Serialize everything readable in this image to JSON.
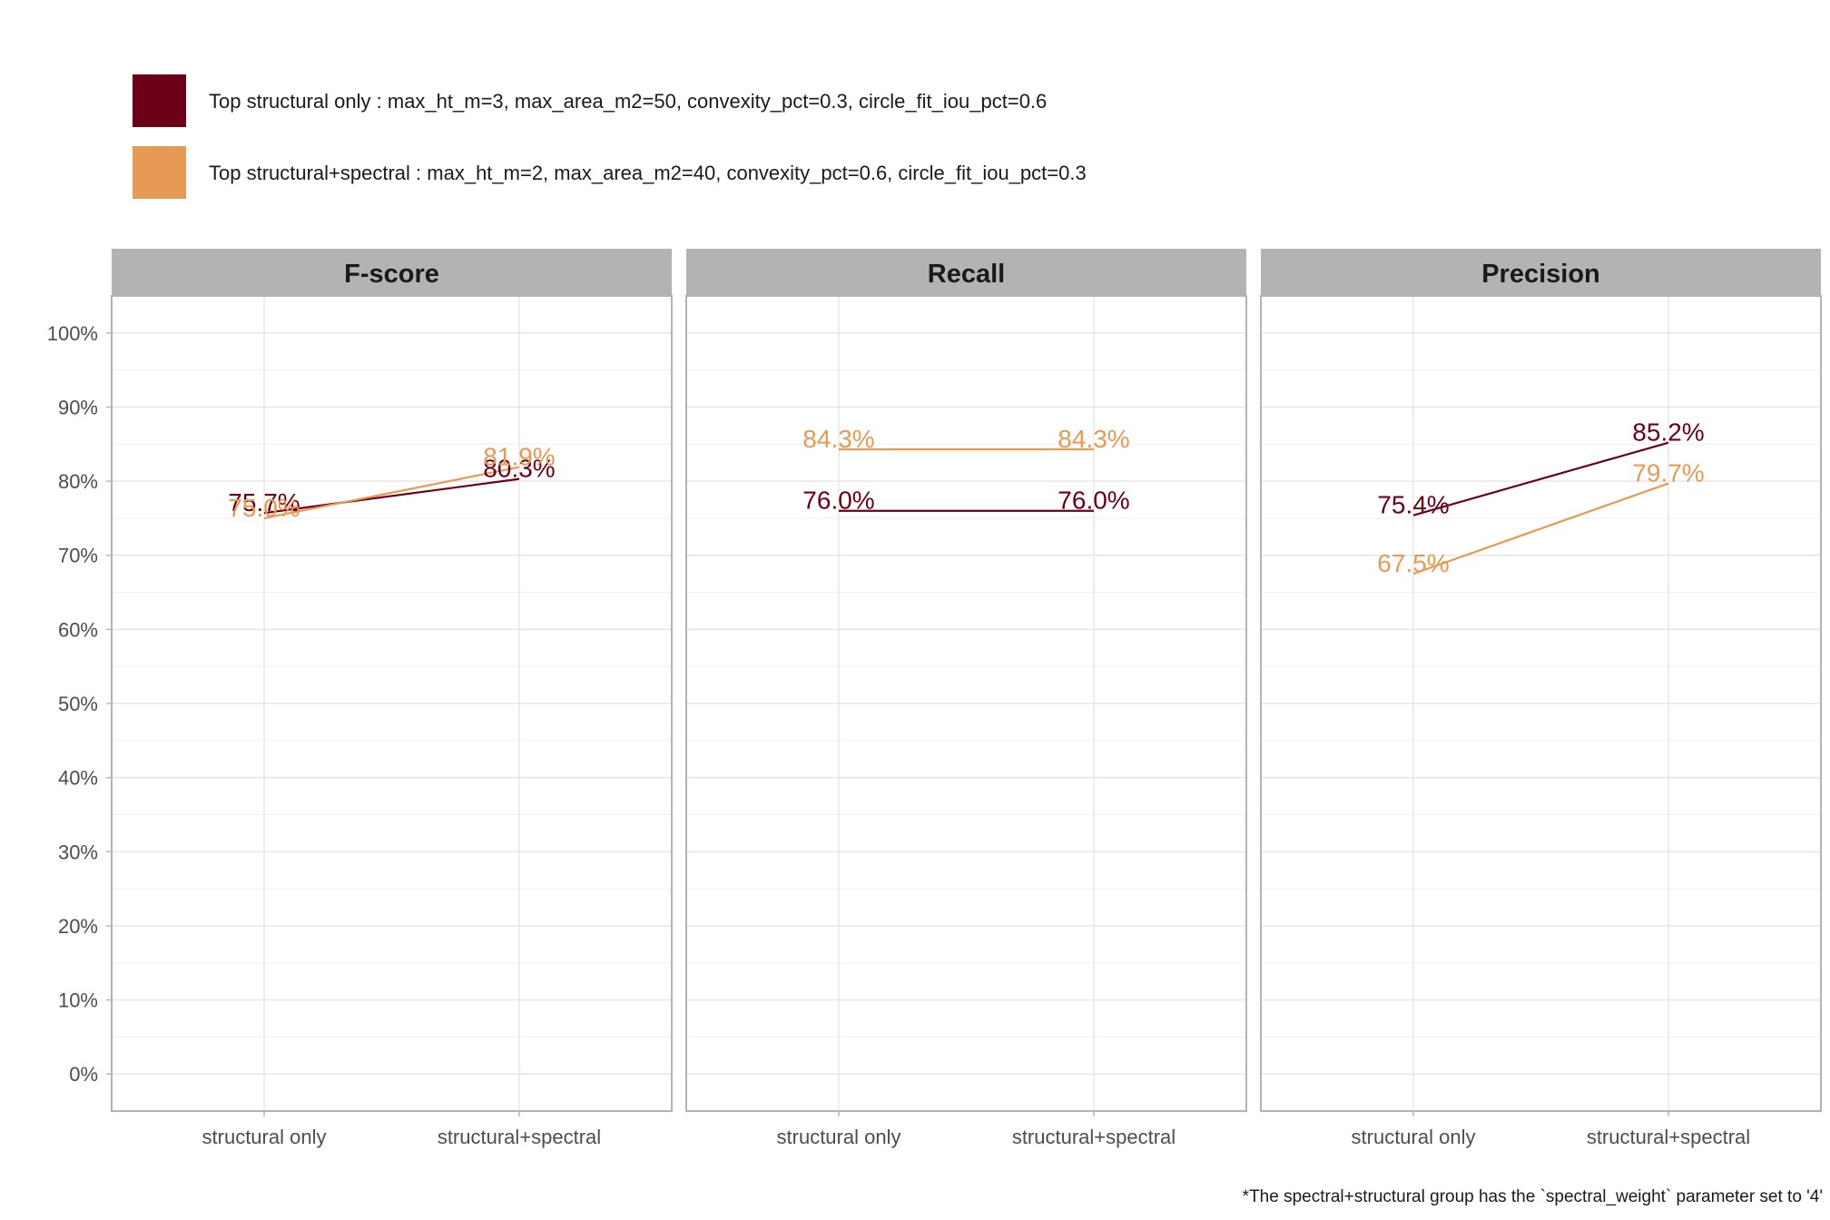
{
  "colors": {
    "structural_only": "#6b0016",
    "structural_spectral": "#e69a53",
    "strip_bg": "#b3b3b3",
    "grid": "#e5e5e5",
    "panel_border": "#b3b3b3"
  },
  "legend": {
    "items": [
      {
        "label": "Top structural only : max_ht_m=3, max_area_m2=50, convexity_pct=0.3, circle_fit_iou_pct=0.6",
        "color": "#6b0016"
      },
      {
        "label": "Top structural+spectral : max_ht_m=2, max_area_m2=40, convexity_pct=0.6, circle_fit_iou_pct=0.3",
        "color": "#e69a53"
      }
    ]
  },
  "caption": "*The spectral+structural group has the `spectral_weight` parameter set to '4'",
  "chart_data": {
    "type": "line",
    "categories": [
      "structural only",
      "structural+spectral"
    ],
    "ylim": [
      -5,
      105
    ],
    "y_ticks": [
      "0%",
      "10%",
      "20%",
      "30%",
      "40%",
      "50%",
      "60%",
      "70%",
      "80%",
      "90%",
      "100%"
    ],
    "grid": true,
    "legend_position": "top-left",
    "panels": [
      {
        "title": "F-score",
        "series": [
          {
            "name": "Top structural only : max_ht_m=3, max_area_m2=50, convexity_pct=0.3, circle_fit_iou_pct=0.6",
            "color": "#6b0016",
            "values": [
              75.7,
              80.3
            ],
            "labels": [
              "75.7%",
              "80.3%"
            ]
          },
          {
            "name": "Top structural+spectral : max_ht_m=2, max_area_m2=40, convexity_pct=0.6, circle_fit_iou_pct=0.3",
            "color": "#e69a53",
            "values": [
              75.0,
              81.9
            ],
            "labels": [
              "75.0%",
              "81.9%"
            ]
          }
        ]
      },
      {
        "title": "Recall",
        "series": [
          {
            "name": "Top structural only : max_ht_m=3, max_area_m2=50, convexity_pct=0.3, circle_fit_iou_pct=0.6",
            "color": "#6b0016",
            "values": [
              76.0,
              76.0
            ],
            "labels": [
              "76.0%",
              "76.0%"
            ]
          },
          {
            "name": "Top structural+spectral : max_ht_m=2, max_area_m2=40, convexity_pct=0.6, circle_fit_iou_pct=0.3",
            "color": "#e69a53",
            "values": [
              84.3,
              84.3
            ],
            "labels": [
              "84.3%",
              "84.3%"
            ]
          }
        ]
      },
      {
        "title": "Precision",
        "series": [
          {
            "name": "Top structural only : max_ht_m=3, max_area_m2=50, convexity_pct=0.3, circle_fit_iou_pct=0.6",
            "color": "#6b0016",
            "values": [
              75.4,
              85.2
            ],
            "labels": [
              "75.4%",
              "85.2%"
            ]
          },
          {
            "name": "Top structural+spectral : max_ht_m=2, max_area_m2=40, convexity_pct=0.6, circle_fit_iou_pct=0.3",
            "color": "#e69a53",
            "values": [
              67.5,
              79.7
            ],
            "labels": [
              "67.5%",
              "79.7%"
            ]
          }
        ]
      }
    ]
  }
}
